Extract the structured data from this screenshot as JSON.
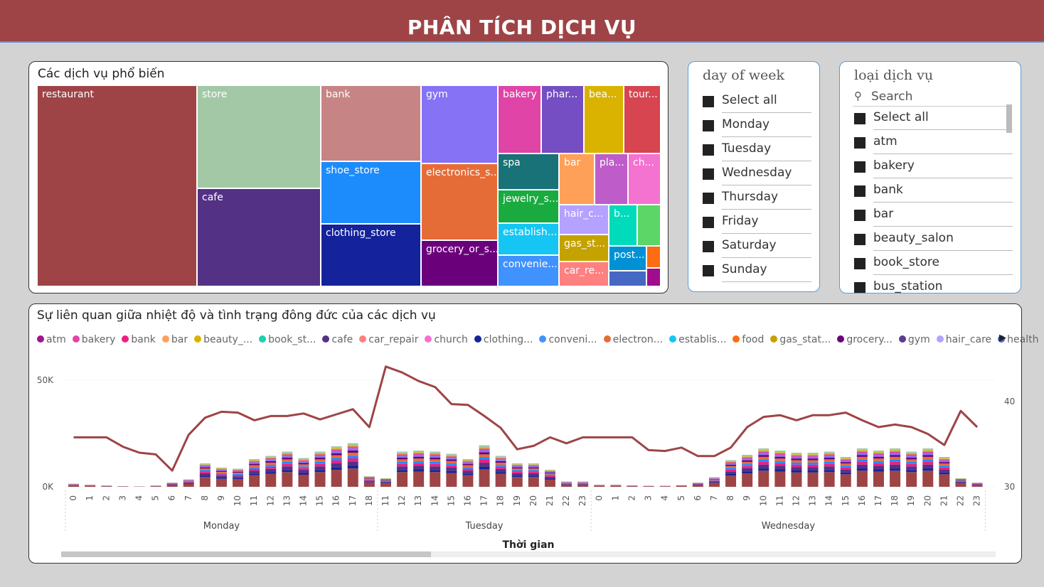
{
  "header": {
    "title": "PHÂN TÍCH DỊCH VỤ"
  },
  "treemap": {
    "title": "Các dịch vụ phổ biến",
    "tiles": [
      {
        "label": "restaurant",
        "color": "#9e4446"
      },
      {
        "label": "store",
        "color": "#a3c8a6"
      },
      {
        "label": "cafe",
        "color": "#533285"
      },
      {
        "label": "bank",
        "color": "#c68584"
      },
      {
        "label": "shoe_store",
        "color": "#1c8cfd"
      },
      {
        "label": "clothing_store",
        "color": "#14239b"
      },
      {
        "label": "gym",
        "color": "#8672f5"
      },
      {
        "label": "electronics_s...",
        "color": "#e66c37"
      },
      {
        "label": "grocery_or_s...",
        "color": "#6b007b"
      },
      {
        "label": "bakery",
        "color": "#e044a7"
      },
      {
        "label": "phar...",
        "color": "#744ec2"
      },
      {
        "label": "bea...",
        "color": "#d9b300"
      },
      {
        "label": "tour...",
        "color": "#d64550"
      },
      {
        "label": "spa",
        "color": "#197278"
      },
      {
        "label": "jewelry_s...",
        "color": "#1aab40"
      },
      {
        "label": "establish...",
        "color": "#15c6f4"
      },
      {
        "label": "convenie...",
        "color": "#4092ff"
      },
      {
        "label": "bar",
        "color": "#ffa058"
      },
      {
        "label": "pla...",
        "color": "#be5dc9"
      },
      {
        "label": "ch...",
        "color": "#f472d0"
      },
      {
        "label": "hair_c...",
        "color": "#b5a1ff"
      },
      {
        "label": "gas_st...",
        "color": "#c4a200"
      },
      {
        "label": "car_re...",
        "color": "#ff8080"
      },
      {
        "label": "b...",
        "color": "#00dbbc"
      },
      {
        "label": "",
        "color": "#5bd667"
      },
      {
        "label": "post...",
        "color": "#0091d5"
      },
      {
        "label": "",
        "color": "#fb6d10"
      },
      {
        "label": "",
        "color": "#4668c5"
      },
      {
        "label": "",
        "color": "#a00d8e"
      }
    ]
  },
  "slicer_day": {
    "title": "day of week",
    "options": [
      "Select all",
      "Monday",
      "Tuesday",
      "Wednesday",
      "Thursday",
      "Friday",
      "Saturday",
      "Sunday"
    ]
  },
  "slicer_service": {
    "title": "loại dịch vụ",
    "search_placeholder": "Search",
    "options": [
      "Select all",
      "atm",
      "bakery",
      "bank",
      "bar",
      "beauty_salon",
      "book_store",
      "bus_station"
    ]
  },
  "combo": {
    "title": "Sự liên quan giữa nhiệt độ và tình trạng đông đức của các dịch vụ",
    "legend": [
      {
        "label": "atm",
        "color": "#a0148e"
      },
      {
        "label": "bakery",
        "color": "#e044a7"
      },
      {
        "label": "bank",
        "color": "#f01d85"
      },
      {
        "label": "bar",
        "color": "#ffa058"
      },
      {
        "label": "beauty_...",
        "color": "#d9b300"
      },
      {
        "label": "book_st...",
        "color": "#1ad1b0"
      },
      {
        "label": "cafe",
        "color": "#533285"
      },
      {
        "label": "car_repair",
        "color": "#ff8080"
      },
      {
        "label": "church",
        "color": "#f472d0"
      },
      {
        "label": "clothing...",
        "color": "#14239b"
      },
      {
        "label": "conveni...",
        "color": "#4092ff"
      },
      {
        "label": "electron...",
        "color": "#e66c37"
      },
      {
        "label": "establis...",
        "color": "#15c6f4"
      },
      {
        "label": "food",
        "color": "#fb6d10"
      },
      {
        "label": "gas_stat...",
        "color": "#c4a200"
      },
      {
        "label": "grocery...",
        "color": "#6b007b"
      },
      {
        "label": "gym",
        "color": "#5d3b8f"
      },
      {
        "label": "hair_care",
        "color": "#b5a1ff"
      },
      {
        "label": "health",
        "color": "#4668c5"
      }
    ],
    "legend_more": "▶"
  },
  "chart_data": {
    "type": "bar",
    "title": "Sự liên quan giữa nhiệt độ và tình trạng đông đức của các dịch vụ",
    "xlabel": "Thời gian",
    "ylabel_left": "",
    "ylabel_right": "",
    "y_left_ticks": [
      "0K",
      "50K"
    ],
    "y_left_range": [
      0,
      55000
    ],
    "y_right_ticks": [
      "30",
      "40"
    ],
    "y_right_range": [
      30,
      44
    ],
    "groups": [
      {
        "day": "Monday",
        "hours": [
          "0",
          "1",
          "2",
          "3",
          "4",
          "5",
          "6",
          "7",
          "8",
          "9",
          "10",
          "11",
          "12",
          "13",
          "14",
          "15",
          "16",
          "17",
          "18"
        ],
        "bar_totals": [
          1500,
          1000,
          600,
          300,
          200,
          600,
          2000,
          3500,
          11000,
          9000,
          8500,
          13000,
          14500,
          16500,
          13500,
          16500,
          19000,
          20500,
          5000
        ],
        "line_temp": [
          35.8,
          35.8,
          35.8,
          34.7,
          34,
          33.8,
          31.9,
          36.1,
          38.1,
          38.8,
          38.7,
          37.8,
          38.3,
          38.3,
          38.6,
          37.9,
          38.5,
          39.1,
          37
        ]
      },
      {
        "day": "Tuesday",
        "hours": [
          "11",
          "12",
          "13",
          "14",
          "15",
          "16",
          "17",
          "18",
          "19",
          "20",
          "21",
          "22",
          "23"
        ],
        "bar_totals": [
          4000,
          16500,
          17000,
          16500,
          15500,
          13000,
          19500,
          14500,
          11000,
          11000,
          8000,
          2500,
          2500
        ],
        "line_temp": [
          44.1,
          43.4,
          42.4,
          41.7,
          39.7,
          39.6,
          38.3,
          36.9,
          34.4,
          34.8,
          35.8,
          35.1,
          35.8
        ]
      },
      {
        "day": "Wednesday",
        "hours": [
          "0",
          "1",
          "2",
          "3",
          "4",
          "5",
          "6",
          "7",
          "8",
          "9",
          "10",
          "11",
          "12",
          "13",
          "14",
          "15",
          "16",
          "17",
          "18",
          "19",
          "20",
          "21",
          "22",
          "23"
        ],
        "bar_totals": [
          1000,
          1000,
          700,
          500,
          500,
          800,
          2000,
          4500,
          12500,
          15000,
          18000,
          17000,
          16000,
          16000,
          16500,
          14000,
          18000,
          17000,
          18000,
          16500,
          18000,
          14000,
          4000,
          2000
        ],
        "line_temp": [
          35.8,
          35.8,
          35.8,
          34.3,
          34.2,
          34.6,
          33.6,
          33.6,
          34.6,
          37,
          38.2,
          38.4,
          37.8,
          38.4,
          38.4,
          38.7,
          37.8,
          37,
          37.3,
          37,
          36.2,
          34.9,
          38.9,
          37
        ]
      }
    ],
    "series_note": "stacked bars by service type (count); line = temperature (right axis)",
    "grid": true,
    "legend_position": "top"
  },
  "scrollbar": {
    "position": 0.0,
    "visible_fraction": 0.4
  }
}
